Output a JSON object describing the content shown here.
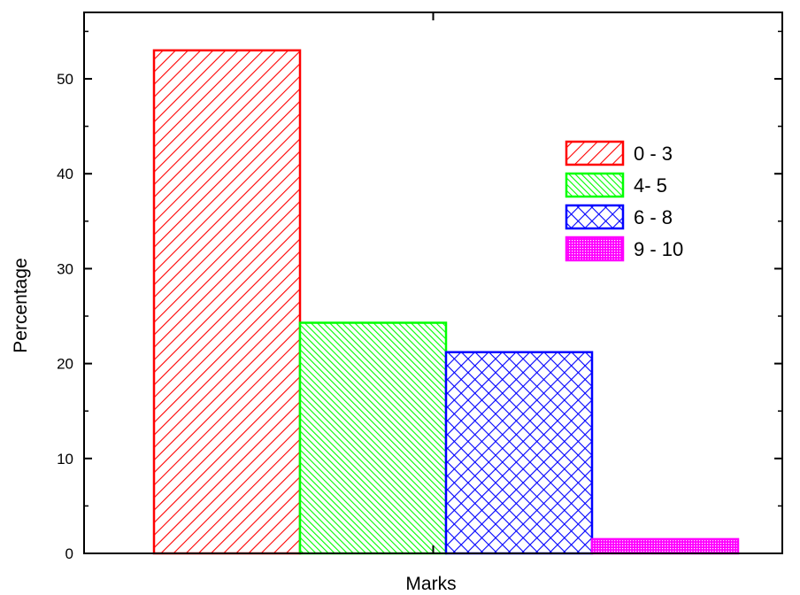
{
  "chart_data": {
    "type": "bar",
    "xlabel": "Marks",
    "ylabel": "Percentage",
    "ylim": [
      0,
      57
    ],
    "yticks": [
      0,
      10,
      20,
      30,
      40,
      50
    ],
    "grid": false,
    "legend_position": "top-right",
    "series": [
      {
        "name": "0 - 3",
        "value": 53,
        "color": "#ff0000",
        "pattern": "diagonal-up"
      },
      {
        "name": "4- 5",
        "value": 24.3,
        "color": "#00ff00",
        "pattern": "diagonal-down-dense"
      },
      {
        "name": "6 - 8",
        "value": 21.2,
        "color": "#0000ff",
        "pattern": "crosshatch"
      },
      {
        "name": "9 - 10",
        "value": 1.5,
        "color": "#ff00ff",
        "pattern": "dots"
      }
    ]
  }
}
